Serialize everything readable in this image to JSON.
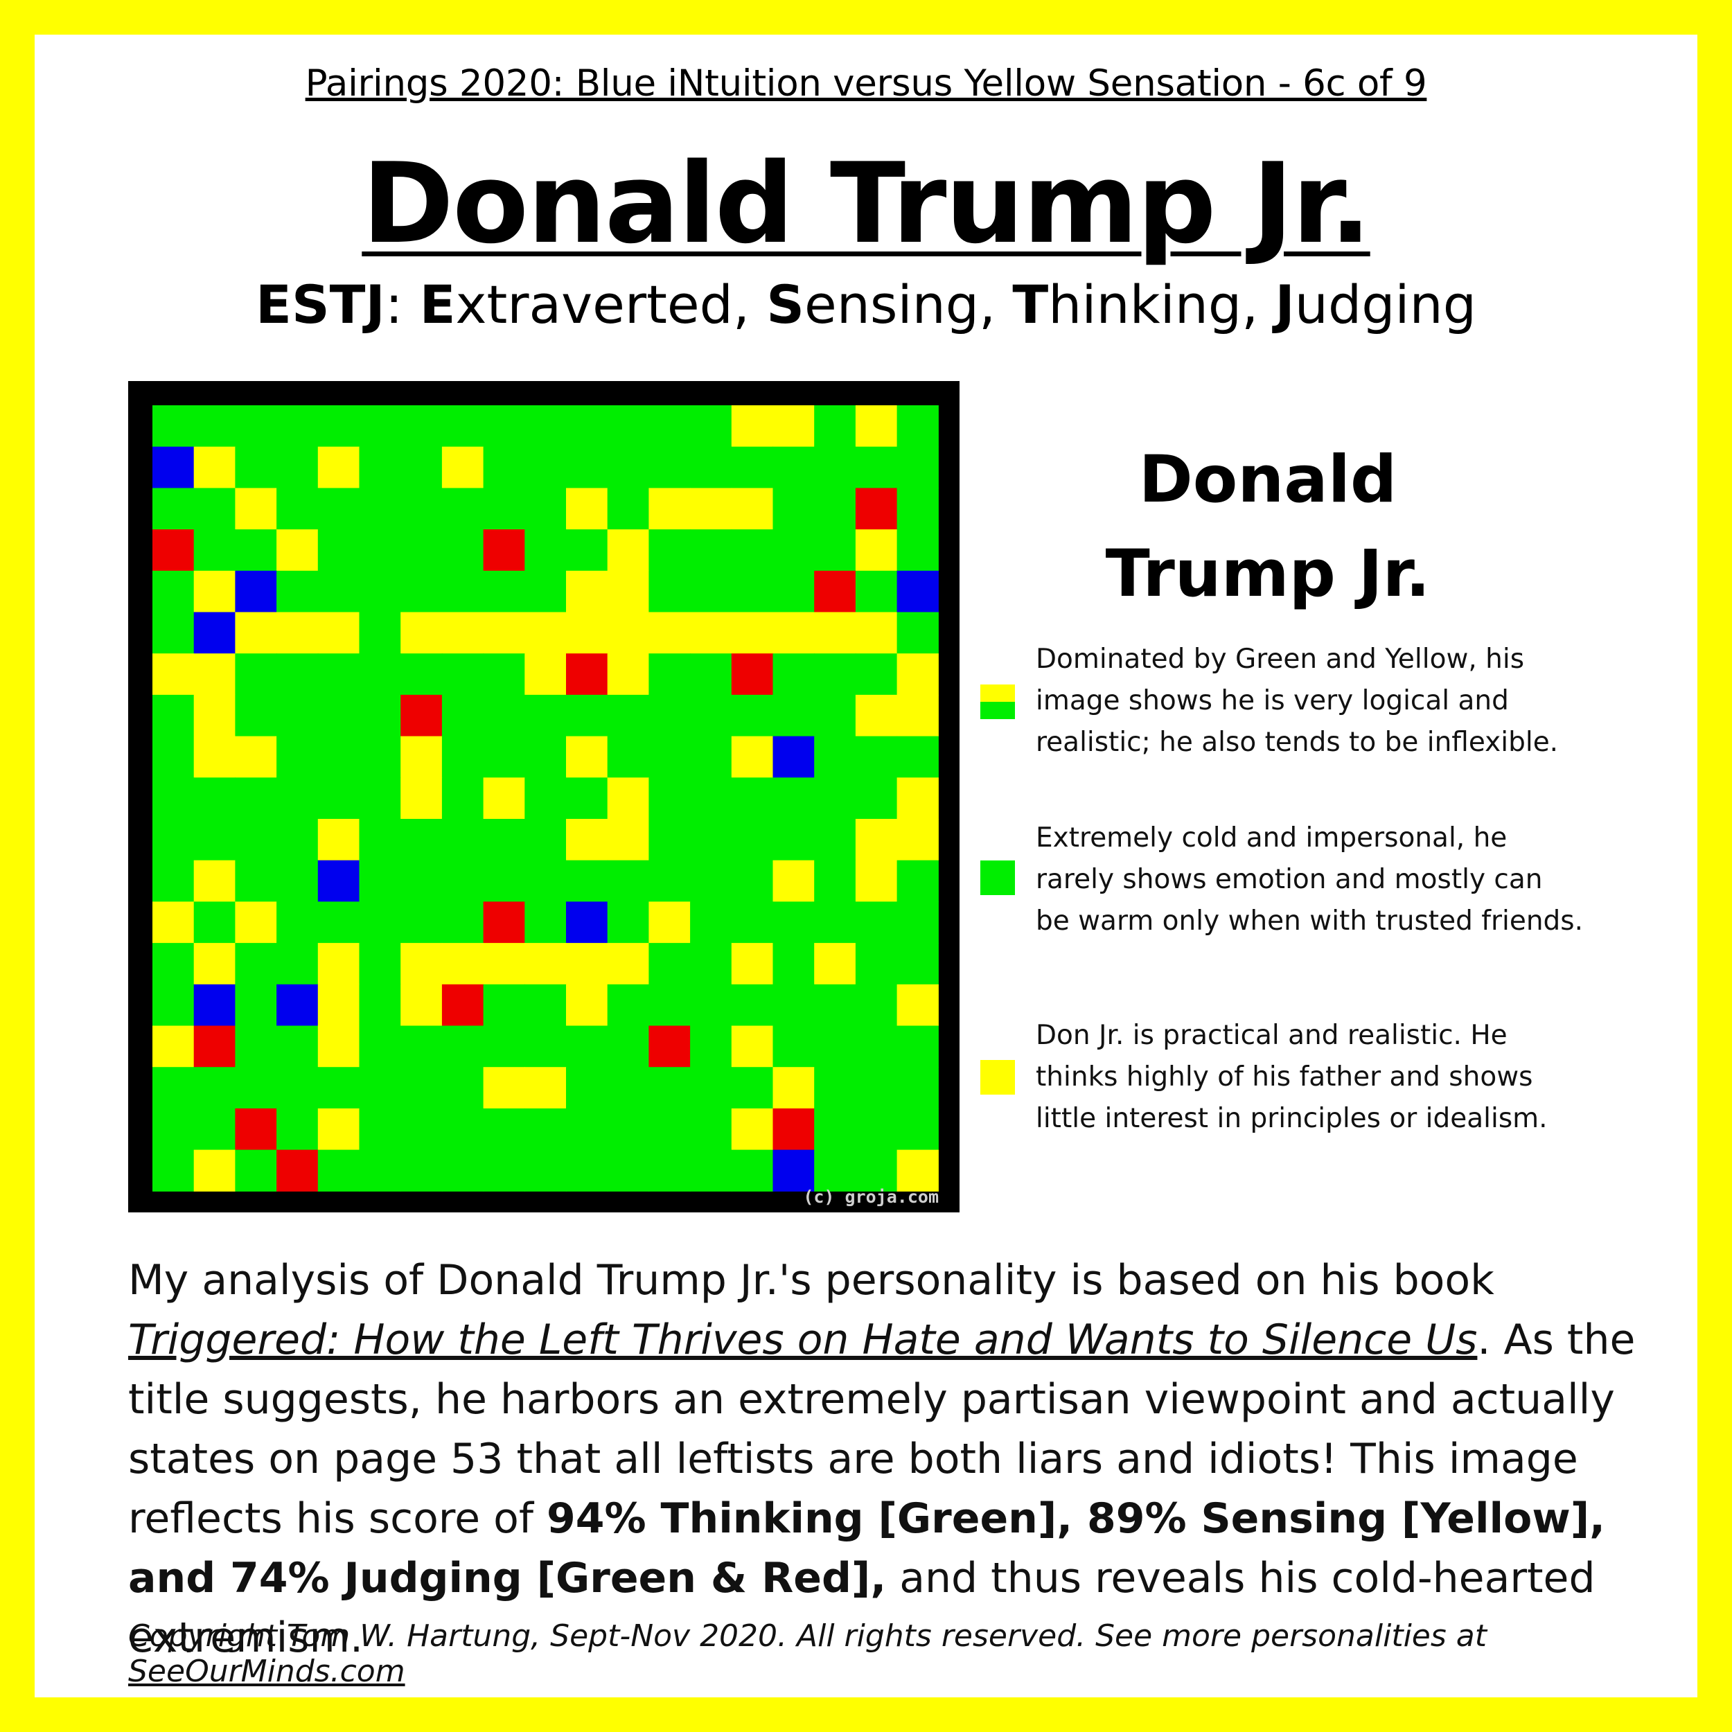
{
  "series_title": "Pairings 2020: Blue iNtuition versus Yellow Sensation - 6c of 9",
  "name": "Donald Trump Jr.",
  "type_line": {
    "code": "ESTJ",
    "sep": ": ",
    "words": [
      {
        "initial": "E",
        "rest": "xtraverted"
      },
      {
        "initial": "S",
        "rest": "ensing"
      },
      {
        "initial": "T",
        "rest": "hinking"
      },
      {
        "initial": "J",
        "rest": "udging"
      }
    ]
  },
  "image_watermark": "(c) groja.com",
  "colors": {
    "green": "#00ee00",
    "yellow": "#ffff00",
    "red": "#ee0000",
    "blue": "#0000ee",
    "frame": "#000000"
  },
  "grid_rows": [
    "GGGGGGGGGGGGGGYYGYG",
    "BYGGYGGYGGGGGGGGGGG",
    "GGYGGGGGGGYGYYYGGRG",
    "RGGYGGGGRGGYGGGGGYG",
    "GYBGGGGGGGYYGGGGRGB",
    "GBYYYGYYYYYYYYYYYYG",
    "YYGGGGGGGYRYGGRGGGY",
    "GYGGGGRGGGGGGGGGGYY",
    "GYYGGGYGGGYGGGYBGGG",
    "GGGGGGYGYGGYGGGGGGY",
    "GGGGYGGGGGYYGGGGGYY",
    "GYGGBGGGGGGGGGGYGYG",
    "YGYGGGGGRGBGYGGGGGG",
    "GYGGYGYYYYYYGGYGYGG",
    "GBGBYGYRGGYGGGGGGGY",
    "YRGGYGGGGGGGRGYGGGG",
    "GGGGGGGGYYGGGGGYGGG",
    "GGRGYGGGGGGGGGYRGGG",
    "GYGRGGGGGGGGGGGBGGY"
  ],
  "side_title": [
    "Donald",
    "Trump Jr."
  ],
  "legend": [
    {
      "swatch": "yellow-green",
      "text": "Dominated by Green and Yellow, his\nimage shows he is very logical and\nrealistic; he also tends to be inflexible."
    },
    {
      "swatch": "green",
      "text": "Extremely cold and impersonal, he\nrarely shows emotion and mostly can\nbe warm only when with trusted friends."
    },
    {
      "swatch": "yellow",
      "text": "Don Jr. is practical and realistic.  He\nthinks highly of his father and shows\nlittle interest in principles or idealism."
    }
  ],
  "analysis": {
    "p1": "My analysis of Donald Trump Jr.'s personality is based on his book ",
    "book": "Triggered: How the Left Thrives on Hate and Wants to Silence Us",
    "p2": ".  As the title suggests, he harbors an extremely partisan viewpoint and actually states on page 53 that all leftists are both liars and idiots!  This image reflects his score of ",
    "scores": "94% Thinking [Green], 89% Sensing [Yellow], and 74% Judging [Green & Red],",
    "p3": " and thus reveals his cold-hearted extremism."
  },
  "copyright": {
    "text": "Copyright Tom W. Hartung, Sept-Nov 2020.  All rights reserved.  See more personalities at ",
    "site": "SeeOurMinds.com"
  }
}
